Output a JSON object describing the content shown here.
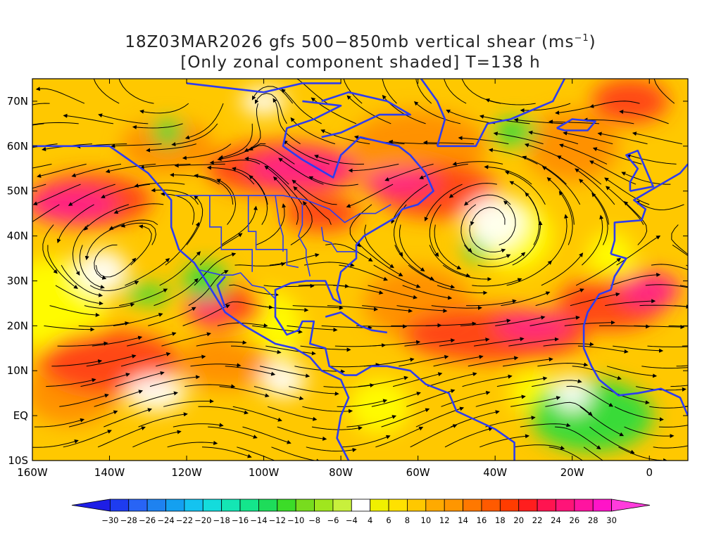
{
  "title": {
    "line1_main": "18Z03MAR2026 gfs 500−850mb vertical shear (ms",
    "line1_sup": "−1",
    "line1_end": ")",
    "line2": "[Only zonal component shaded] T=138 h"
  },
  "chart_data": {
    "type": "heatmap",
    "lon_range": [
      -160,
      10
    ],
    "lat_range": [
      -10,
      75
    ],
    "x_tick_labels": [
      "160W",
      "140W",
      "120W",
      "100W",
      "80W",
      "60W",
      "40W",
      "20W",
      "0"
    ],
    "x_tick_values": [
      -160,
      -140,
      -120,
      -100,
      -80,
      -60,
      -40,
      -20,
      0
    ],
    "y_tick_labels": [
      "10S",
      "EQ",
      "10N",
      "20N",
      "30N",
      "40N",
      "50N",
      "60N",
      "70N"
    ],
    "y_tick_values": [
      -10,
      0,
      10,
      20,
      30,
      40,
      50,
      60,
      70
    ],
    "overlays": [
      "streamlines",
      "coastlines",
      "political boundaries"
    ],
    "colorbar": {
      "labels": [
        "−30",
        "−28",
        "−26",
        "−24",
        "−22",
        "−20",
        "−18",
        "−16",
        "−14",
        "−12",
        "−10",
        "−8",
        "−6",
        "−4",
        "4",
        "6",
        "8",
        "10",
        "12",
        "14",
        "16",
        "18",
        "20",
        "22",
        "24",
        "26",
        "28",
        "30"
      ],
      "colors": [
        "#1e1ee6",
        "#1e3cf0",
        "#2864f5",
        "#1e82f0",
        "#14a0f0",
        "#14c3f0",
        "#14dcdc",
        "#14e6b4",
        "#14e68c",
        "#1edc5a",
        "#3cdc28",
        "#78dc1e",
        "#a0e61e",
        "#c8f03c",
        "#ffffff",
        "#f0f000",
        "#ffe100",
        "#ffc800",
        "#ffaa00",
        "#ff9600",
        "#ff7800",
        "#ff5a00",
        "#ff3c00",
        "#ff1e1e",
        "#ff1450",
        "#ff1478",
        "#ff14a0",
        "#ff14c8",
        "#ff3cdc"
      ]
    }
  },
  "shading_colors": {
    "strong_westerly": "#ff1e8c",
    "westerly": "#ff3c14",
    "moderate": "#ff8c00",
    "weak": "#ffc800",
    "light": "#ffff00",
    "easterly": "#28dc3c",
    "coast": "#2d3cf0"
  }
}
